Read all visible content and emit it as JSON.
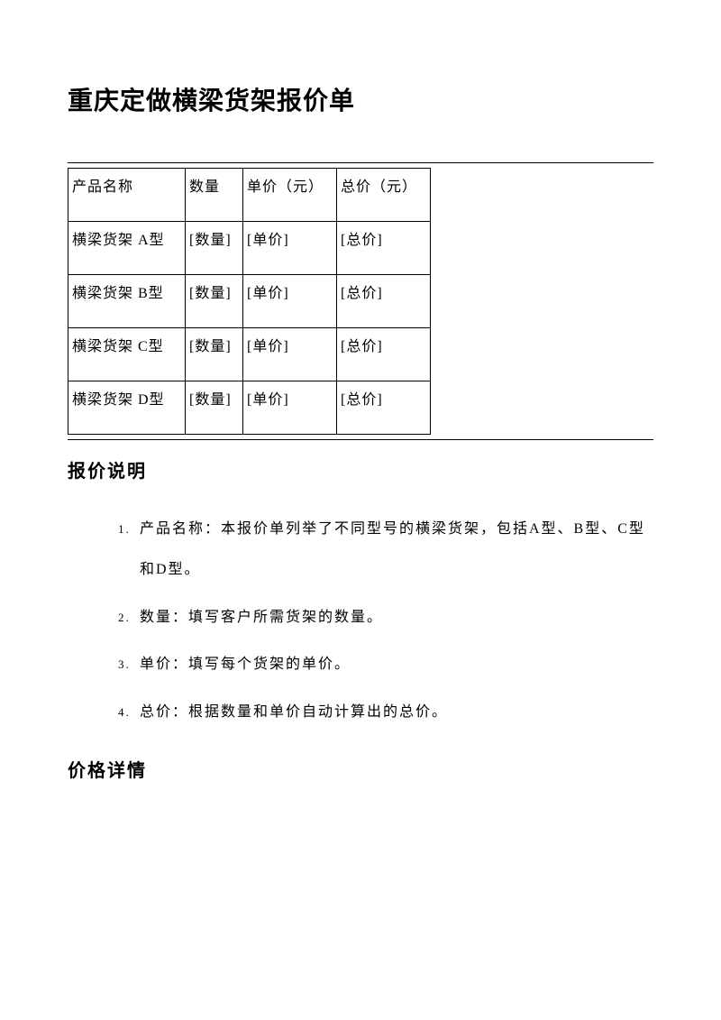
{
  "title": "重庆定做横梁货架报价单",
  "table": {
    "headers": {
      "name": "产品名称",
      "qty": "数量",
      "price": "单价（元）",
      "total": "总价（元）"
    },
    "rows": [
      {
        "name": "横梁货架 A型",
        "qty": "[数量]",
        "price": "[单价]",
        "total": "[总价]"
      },
      {
        "name": "横梁货架 B型",
        "qty": "[数量]",
        "price": "[单价]",
        "total": "[总价]"
      },
      {
        "name": "横梁货架 C型",
        "qty": "[数量]",
        "price": "[单价]",
        "total": "[总价]"
      },
      {
        "name": "横梁货架 D型",
        "qty": "[数量]",
        "price": "[单价]",
        "total": "[总价]"
      }
    ]
  },
  "section1": {
    "title": "报价说明",
    "items": [
      "产品名称：本报价单列举了不同型号的横梁货架，包括A型、B型、C型和D型。",
      "数量：填写客户所需货架的数量。",
      "单价：填写每个货架的单价。",
      "总价：根据数量和单价自动计算出的总价。"
    ]
  },
  "section2": {
    "title": "价格详情"
  },
  "style": {
    "background_color": "#ffffff",
    "text_color": "#000000",
    "border_color": "#000000",
    "title_fontsize": 28,
    "heading_fontsize": 20,
    "body_fontsize": 16,
    "font_family": "SimSun"
  }
}
